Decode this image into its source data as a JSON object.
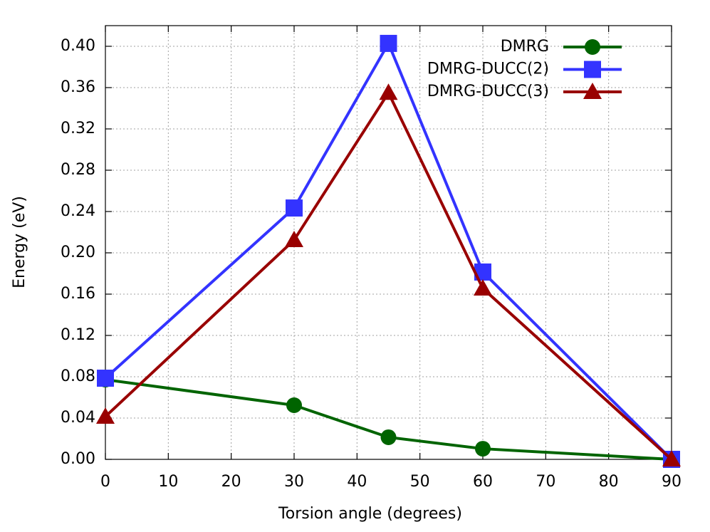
{
  "chart_data": {
    "type": "line",
    "x_label": "Torsion angle (degrees)",
    "y_label": "Energy (eV)",
    "x": [
      0,
      30,
      45,
      60,
      90
    ],
    "series": [
      {
        "name": "DMRG",
        "color": "#006400",
        "marker": "circle",
        "values": [
          0.0772,
          0.0524,
          0.0214,
          0.0103,
          0
        ]
      },
      {
        "name": "DMRG-DUCC(2)",
        "color": "#3333ff",
        "marker": "square",
        "values": [
          0.0786,
          0.2434,
          0.4028,
          0.1814,
          0
        ]
      },
      {
        "name": "DMRG-DUCC(3)",
        "color": "#990000",
        "marker": "triangle",
        "values": [
          0.0414,
          0.2124,
          0.355,
          0.1655,
          0
        ]
      }
    ],
    "xlim": [
      0,
      90
    ],
    "xticks": [
      0,
      10,
      20,
      30,
      40,
      50,
      60,
      70,
      80,
      90
    ],
    "ylim": [
      0,
      0.42
    ],
    "yticks": [
      {
        "value": 0,
        "label": "0.00"
      },
      {
        "value": 0.04,
        "label": "0.04"
      },
      {
        "value": 0.08,
        "label": "0.08"
      },
      {
        "value": 0.12,
        "label": "0.12"
      },
      {
        "value": 0.16,
        "label": "0.16"
      },
      {
        "value": 0.2,
        "label": "0.20"
      },
      {
        "value": 0.24,
        "label": "0.24"
      },
      {
        "value": 0.28,
        "label": "0.28"
      },
      {
        "value": 0.32,
        "label": "0.32"
      },
      {
        "value": 0.36,
        "label": "0.36"
      },
      {
        "value": 0.4,
        "label": "0.40"
      }
    ],
    "grid": true,
    "legend": "top-right"
  }
}
